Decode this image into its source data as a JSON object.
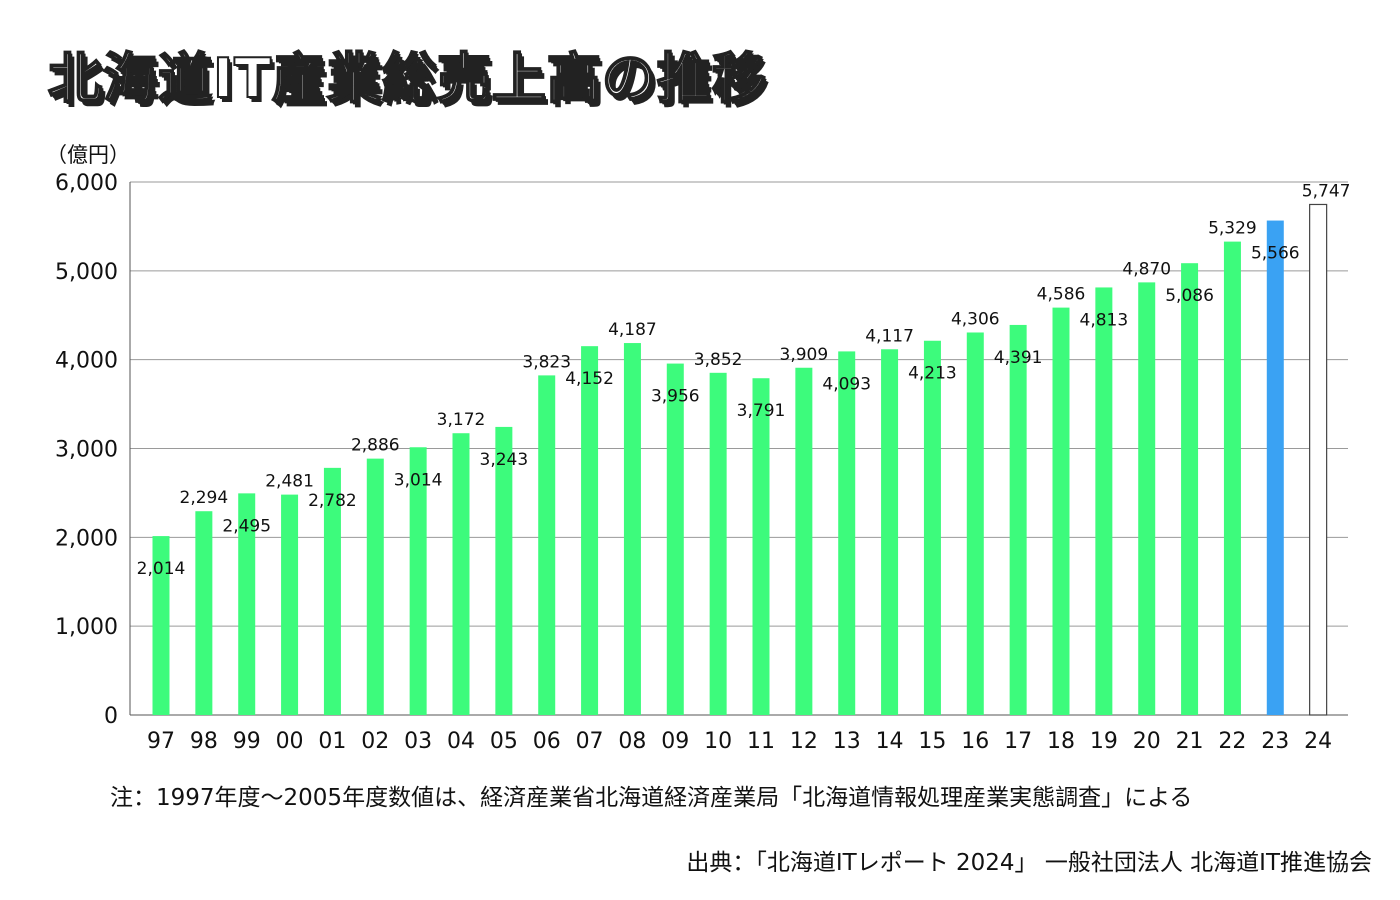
{
  "chart_data": {
    "type": "bar",
    "title": "北海道IT産業総売上高の推移",
    "ylabel": "（億円）",
    "xlabel": "",
    "ylim": [
      0,
      6000
    ],
    "yticks": [
      "0",
      "1,000",
      "2,000",
      "3,000",
      "4,000",
      "5,000",
      "6,000"
    ],
    "ytick_values": [
      0,
      1000,
      2000,
      3000,
      4000,
      5000,
      6000
    ],
    "grid": true,
    "categories": [
      "97",
      "98",
      "99",
      "00",
      "01",
      "02",
      "03",
      "04",
      "05",
      "06",
      "07",
      "08",
      "09",
      "10",
      "11",
      "12",
      "13",
      "14",
      "15",
      "16",
      "17",
      "18",
      "19",
      "20",
      "21",
      "22",
      "23",
      "24"
    ],
    "values": [
      2014,
      2294,
      2495,
      2481,
      2782,
      2886,
      3014,
      3172,
      3243,
      3823,
      4152,
      4187,
      3956,
      3852,
      3791,
      3909,
      4093,
      4117,
      4213,
      4306,
      4391,
      4586,
      4813,
      4870,
      5086,
      5329,
      5566,
      5747
    ],
    "value_labels": [
      "2,014",
      "2,294",
      "2,495",
      "2,481",
      "2,782",
      "2,886",
      "3,014",
      "3,172",
      "3,243",
      "3,823",
      "4,152",
      "4,187",
      "3,956",
      "3,852",
      "3,791",
      "3,909",
      "4,093",
      "4,117",
      "4,213",
      "4,306",
      "4,391",
      "4,586",
      "4,813",
      "4,870",
      "5,086",
      "5,329",
      "5,566",
      "5,747"
    ],
    "label_position": [
      "inside",
      "above",
      "inside",
      "above",
      "inside",
      "above",
      "inside",
      "above",
      "inside",
      "above",
      "inside",
      "above",
      "inside",
      "above",
      "inside",
      "above",
      "inside",
      "above",
      "inside",
      "above",
      "inside",
      "above",
      "inside",
      "above",
      "inside",
      "above",
      "inside",
      "above"
    ],
    "bar_style": [
      "actual",
      "actual",
      "actual",
      "actual",
      "actual",
      "actual",
      "actual",
      "actual",
      "actual",
      "actual",
      "actual",
      "actual",
      "actual",
      "actual",
      "actual",
      "actual",
      "actual",
      "actual",
      "actual",
      "actual",
      "actual",
      "actual",
      "actual",
      "actual",
      "actual",
      "actual",
      "estimate",
      "forecast"
    ],
    "colors": {
      "actual": "#3dfb7c",
      "estimate": "#3aa2f3",
      "forecast": "#ffffff",
      "forecast_stroke": "#444444",
      "grid": "#9a9a9a",
      "axis": "#555555"
    }
  },
  "note": "注：1997年度～2005年度数値は、経済産業省北海道経済産業局「北海道情報処理産業実態調査」による",
  "source": "出典：「北海道ITレポート 2024」 一般社団法人 北海道IT推進協会"
}
